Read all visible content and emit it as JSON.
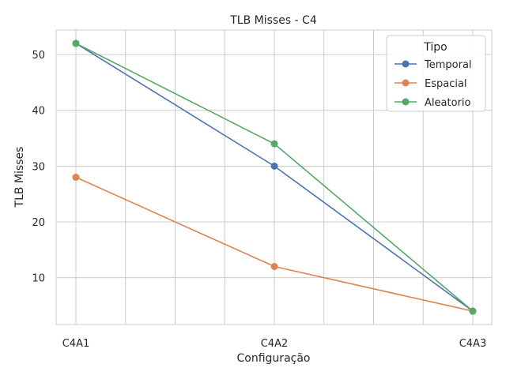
{
  "chart_data": {
    "type": "line",
    "title": "TLB Misses - C4",
    "xlabel": "Configuração",
    "ylabel": "TLB Misses",
    "categories": [
      "C4A1",
      "C4A2",
      "C4A3"
    ],
    "ylim": [
      1.6,
      54.4
    ],
    "yticks": [
      10,
      20,
      30,
      40,
      50
    ],
    "grid": true,
    "legend_title": "Tipo",
    "legend_position": "top-right",
    "series": [
      {
        "name": "Temporal",
        "color": "#4c72b0",
        "values": [
          52,
          30,
          4
        ]
      },
      {
        "name": "Espacial",
        "color": "#dd8452",
        "values": [
          28,
          12,
          4
        ]
      },
      {
        "name": "Aleatorio",
        "color": "#55a868",
        "values": [
          52,
          34,
          4
        ]
      }
    ]
  }
}
